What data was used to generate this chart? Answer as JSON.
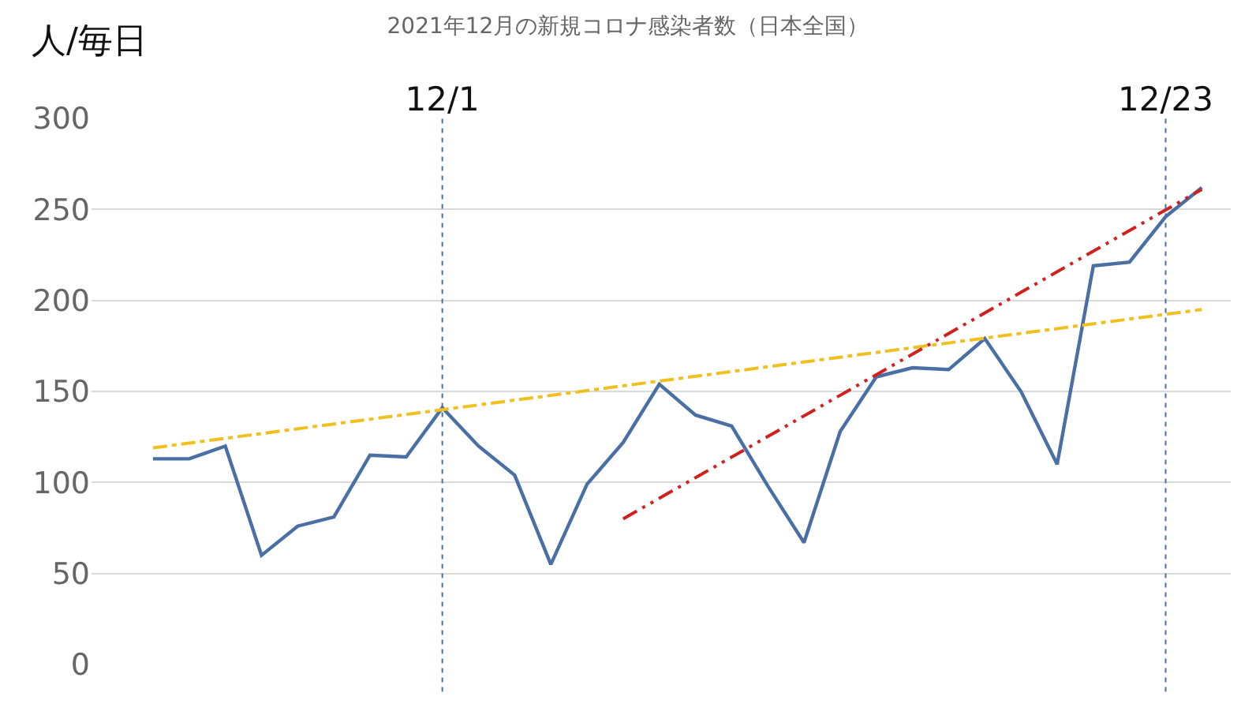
{
  "chart_data": {
    "type": "line",
    "title": "2021年12月の新規コロナ感染者数（日本全国）",
    "ylabel": "人/毎日",
    "categories": [
      null,
      null,
      null,
      null,
      null,
      null,
      null,
      null,
      "12/1",
      null,
      null,
      null,
      null,
      null,
      null,
      null,
      null,
      null,
      null,
      null,
      null,
      null,
      null,
      null,
      null,
      null,
      null,
      null,
      "12/23",
      null
    ],
    "series": [
      {
        "color": "#4a6fa5",
        "line_style": "solid",
        "values": [
          113,
          113,
          120,
          60,
          76,
          81,
          115,
          114,
          141,
          120,
          104,
          55,
          99,
          122,
          154,
          137,
          131,
          98,
          67,
          128,
          158,
          163,
          162,
          179,
          150,
          110,
          219,
          221,
          246,
          262
        ]
      },
      {
        "type": "line",
        "color": "#f0c020",
        "line_style": "dashdot",
        "values": [
          119,
          null,
          null,
          null,
          null,
          null,
          null,
          null,
          null,
          null,
          null,
          null,
          null,
          null,
          null,
          null,
          null,
          null,
          null,
          null,
          null,
          null,
          null,
          null,
          null,
          null,
          null,
          null,
          null,
          195
        ]
      },
      {
        "type": "line",
        "color": "#d02020",
        "line_style": "dashdotdot",
        "values": [
          null,
          null,
          null,
          null,
          null,
          null,
          null,
          null,
          null,
          null,
          null,
          null,
          null,
          80,
          null,
          null,
          null,
          null,
          null,
          null,
          null,
          null,
          null,
          null,
          null,
          null,
          null,
          null,
          null,
          261
        ]
      }
    ],
    "ylim": [
      0,
      300
    ],
    "yticks": [
      0,
      50,
      100,
      150,
      200,
      250,
      300
    ],
    "grid": "y",
    "marker": "none",
    "ref_lines": [
      {
        "axis": "x",
        "value": "12/1",
        "color": "#4a6fa5",
        "line_style": "dotted"
      },
      {
        "axis": "x",
        "value": "12/23",
        "color": "#4a6fa5",
        "line_style": "dotted"
      }
    ]
  }
}
